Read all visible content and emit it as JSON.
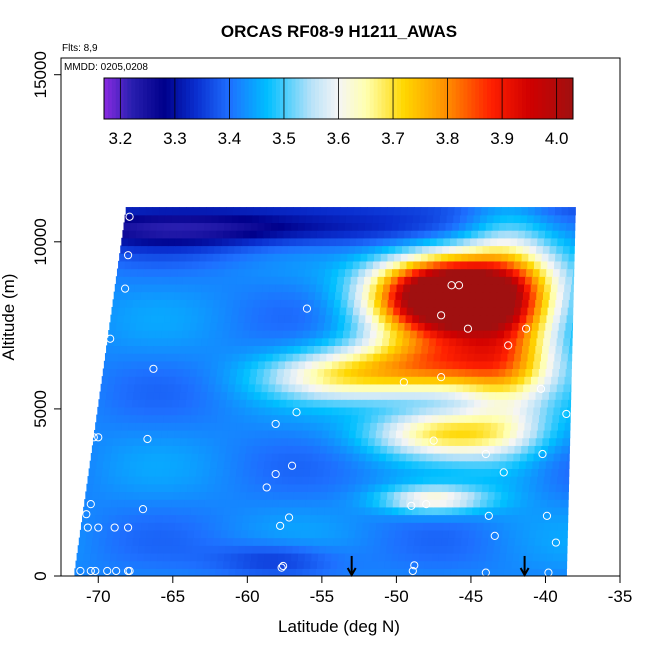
{
  "chart_data": {
    "type": "heatmap",
    "title": "ORCAS RF08-9 H1211_AWAS",
    "annotations": [
      "Flts: 8,9",
      "MMDD: 0205,0208"
    ],
    "xlabel": "Latitude (deg N)",
    "ylabel": "Altitude (m)",
    "xlim": [
      -72.5,
      -35
    ],
    "ylim": [
      0,
      15500
    ],
    "xticks": [
      -70,
      -65,
      -60,
      -55,
      -50,
      -45,
      -40,
      -35
    ],
    "yticks": [
      0,
      5000,
      10000,
      15000
    ],
    "grid": false,
    "colorbar": {
      "placement": "top-left inside",
      "range": [
        3.17,
        4.03
      ],
      "ticks": [
        3.2,
        3.3,
        3.4,
        3.5,
        3.6,
        3.7,
        3.8,
        3.9,
        4.0
      ],
      "stops": [
        {
          "value": 3.17,
          "color": "#8a2be2"
        },
        {
          "value": 3.22,
          "color": "#2a1fb0"
        },
        {
          "value": 3.28,
          "color": "#00008b"
        },
        {
          "value": 3.34,
          "color": "#0a2fd0"
        },
        {
          "value": 3.4,
          "color": "#1e6fff"
        },
        {
          "value": 3.47,
          "color": "#00bfff"
        },
        {
          "value": 3.55,
          "color": "#b8e2f8"
        },
        {
          "value": 3.6,
          "color": "#f5f5f5"
        },
        {
          "value": 3.65,
          "color": "#ffffb0"
        },
        {
          "value": 3.72,
          "color": "#ffd700"
        },
        {
          "value": 3.8,
          "color": "#ff8c00"
        },
        {
          "value": 3.88,
          "color": "#ff2000"
        },
        {
          "value": 3.95,
          "color": "#d00000"
        },
        {
          "value": 4.03,
          "color": "#a01010"
        }
      ]
    },
    "field": {
      "lat_extent": [
        -71.5,
        -38.5
      ],
      "alt_extent": [
        0,
        11000
      ],
      "background_value": 3.42,
      "features": [
        {
          "lat": -47.0,
          "alt": 8400,
          "lat_width": 4.5,
          "alt_width": 1100,
          "amp": 0.58
        },
        {
          "lat": -44.5,
          "alt": 8300,
          "lat_width": 5.5,
          "alt_width": 1400,
          "amp": 0.32
        },
        {
          "lat": -47.0,
          "alt": 6300,
          "lat_width": 6.0,
          "alt_width": 900,
          "amp": 0.36
        },
        {
          "lat": -54.0,
          "alt": 6000,
          "lat_width": 5.0,
          "alt_width": 700,
          "amp": 0.18
        },
        {
          "lat": -46.5,
          "alt": 4300,
          "lat_width": 5.0,
          "alt_width": 700,
          "amp": 0.27
        },
        {
          "lat": -42.5,
          "alt": 7600,
          "lat_width": 3.0,
          "alt_width": 3500,
          "amp": 0.2
        },
        {
          "lat": -47.5,
          "alt": 2300,
          "lat_width": 3.5,
          "alt_width": 400,
          "amp": 0.2
        },
        {
          "lat": -63.0,
          "alt": 10400,
          "lat_width": 12.0,
          "alt_width": 500,
          "amp": -0.14
        },
        {
          "lat": -58.0,
          "alt": 500,
          "lat_width": 4.0,
          "alt_width": 500,
          "amp": -0.08
        }
      ]
    },
    "sample_points": [
      {
        "lat": -67.9,
        "alt": 10750
      },
      {
        "lat": -68.0,
        "alt": 9600
      },
      {
        "lat": -68.2,
        "alt": 8600
      },
      {
        "lat": -56.0,
        "alt": 8000
      },
      {
        "lat": -46.3,
        "alt": 8700
      },
      {
        "lat": -45.8,
        "alt": 8700
      },
      {
        "lat": -47.0,
        "alt": 7800
      },
      {
        "lat": -45.2,
        "alt": 7400
      },
      {
        "lat": -69.2,
        "alt": 7100
      },
      {
        "lat": -66.3,
        "alt": 6200
      },
      {
        "lat": -49.5,
        "alt": 5800
      },
      {
        "lat": -47.0,
        "alt": 5950
      },
      {
        "lat": -42.5,
        "alt": 6900
      },
      {
        "lat": -41.3,
        "alt": 7400
      },
      {
        "lat": -40.3,
        "alt": 5600
      },
      {
        "lat": -38.6,
        "alt": 4850
      },
      {
        "lat": -56.7,
        "alt": 4900
      },
      {
        "lat": -58.1,
        "alt": 4550
      },
      {
        "lat": -70.3,
        "alt": 4150
      },
      {
        "lat": -70.0,
        "alt": 4150
      },
      {
        "lat": -66.7,
        "alt": 4100
      },
      {
        "lat": -47.5,
        "alt": 4050
      },
      {
        "lat": -44.0,
        "alt": 3650
      },
      {
        "lat": -40.2,
        "alt": 3650
      },
      {
        "lat": -57.0,
        "alt": 3300
      },
      {
        "lat": -58.1,
        "alt": 3050
      },
      {
        "lat": -42.8,
        "alt": 3100
      },
      {
        "lat": -58.7,
        "alt": 2650
      },
      {
        "lat": -70.5,
        "alt": 2150
      },
      {
        "lat": -49.0,
        "alt": 2100
      },
      {
        "lat": -48.0,
        "alt": 2150
      },
      {
        "lat": -67.0,
        "alt": 2000
      },
      {
        "lat": -70.8,
        "alt": 1850
      },
      {
        "lat": -57.2,
        "alt": 1750
      },
      {
        "lat": -43.8,
        "alt": 1800
      },
      {
        "lat": -39.9,
        "alt": 1800
      },
      {
        "lat": -57.8,
        "alt": 1500
      },
      {
        "lat": -70.7,
        "alt": 1450
      },
      {
        "lat": -70.0,
        "alt": 1450
      },
      {
        "lat": -68.9,
        "alt": 1450
      },
      {
        "lat": -68.0,
        "alt": 1450
      },
      {
        "lat": -43.4,
        "alt": 1200
      },
      {
        "lat": -39.3,
        "alt": 1000
      },
      {
        "lat": -57.6,
        "alt": 300
      },
      {
        "lat": -57.7,
        "alt": 250
      },
      {
        "lat": -48.8,
        "alt": 320
      },
      {
        "lat": -71.2,
        "alt": 150
      },
      {
        "lat": -70.5,
        "alt": 150
      },
      {
        "lat": -70.2,
        "alt": 150
      },
      {
        "lat": -69.4,
        "alt": 150
      },
      {
        "lat": -68.8,
        "alt": 150
      },
      {
        "lat": -68.0,
        "alt": 150
      },
      {
        "lat": -67.9,
        "alt": 150
      },
      {
        "lat": -48.9,
        "alt": 150
      },
      {
        "lat": -44.0,
        "alt": 100
      },
      {
        "lat": -39.8,
        "alt": 100
      }
    ],
    "arrows": [
      {
        "lat": -53.0,
        "alt_top": 600,
        "alt_bottom": 0
      },
      {
        "lat": -41.4,
        "alt_top": 600,
        "alt_bottom": 0
      }
    ]
  }
}
